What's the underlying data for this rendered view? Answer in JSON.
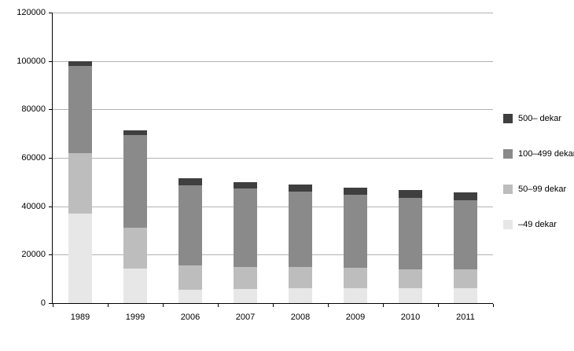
{
  "chart_data": {
    "type": "bar",
    "stacked": true,
    "title": "",
    "xlabel": "",
    "ylabel": "",
    "categories": [
      "1989",
      "1999",
      "2006",
      "2007",
      "2008",
      "2009",
      "2010",
      "2011"
    ],
    "series": [
      {
        "name": "–49 dekar",
        "color": "#e7e7e7",
        "values": [
          37000,
          14200,
          5600,
          6000,
          6100,
          6100,
          6300,
          6100
        ]
      },
      {
        "name": "50–99 dekar",
        "color": "#bdbdbd",
        "values": [
          25000,
          17000,
          10000,
          9000,
          8700,
          8400,
          7800,
          7800
        ]
      },
      {
        "name": "100–499 dekar",
        "color": "#8a8a8a",
        "values": [
          36000,
          38300,
          33000,
          32500,
          31200,
          30300,
          29400,
          28500
        ]
      },
      {
        "name": "500– dekar",
        "color": "#3f3f3f",
        "values": [
          1800,
          1700,
          3000,
          2500,
          3000,
          3000,
          3200,
          3200
        ]
      }
    ],
    "ylim": [
      0,
      120000
    ],
    "ytick_interval": 20000,
    "yticks": [
      0,
      20000,
      40000,
      60000,
      80000,
      100000,
      120000
    ],
    "grid": true,
    "legend_position": "right",
    "legend_order_top_to_bottom": [
      "500– dekar",
      "100–499 dekar",
      "50–99 dekar",
      "–49 dekar"
    ]
  }
}
